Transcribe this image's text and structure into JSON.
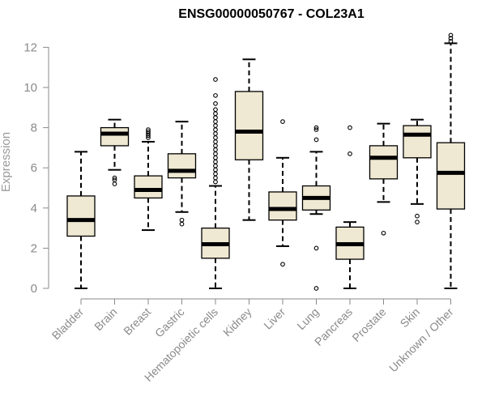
{
  "chart_data": {
    "type": "boxplot",
    "title": "ENSG00000050767 - COL23A1",
    "xlabel": "",
    "ylabel": "Expression",
    "ylim": [
      0,
      12.5
    ],
    "yticks": [
      0,
      2,
      4,
      6,
      8,
      10,
      12
    ],
    "colors": {
      "box_fill": "#efe8d2",
      "box_stroke": "#000000",
      "axis": "#8a8a8a"
    },
    "categories": [
      "Bladder",
      "Brain",
      "Breast",
      "Gastric",
      "Hematopoietic cells",
      "Kidney",
      "Liver",
      "Lung",
      "Pancreas",
      "Prostate",
      "Skin",
      "Unknown / Other"
    ],
    "boxes": [
      {
        "category": "Bladder",
        "min": 0.0,
        "q1": 2.6,
        "median": 3.4,
        "q3": 4.6,
        "max": 6.8,
        "outliers": []
      },
      {
        "category": "Brain",
        "min": 5.9,
        "q1": 7.1,
        "median": 7.7,
        "q3": 8.0,
        "max": 8.4,
        "outliers": [
          5.5,
          5.4,
          5.2
        ]
      },
      {
        "category": "Breast",
        "min": 2.9,
        "q1": 4.5,
        "median": 4.9,
        "q3": 5.6,
        "max": 7.3,
        "outliers": [
          7.5,
          7.6,
          7.7,
          7.8,
          7.9
        ]
      },
      {
        "category": "Gastric",
        "min": 3.8,
        "q1": 5.5,
        "median": 5.85,
        "q3": 6.7,
        "max": 8.3,
        "outliers": [
          3.4,
          3.2
        ]
      },
      {
        "category": "Hematopoietic cells",
        "min": 0.0,
        "q1": 1.5,
        "median": 2.2,
        "q3": 3.0,
        "max": 5.1,
        "outliers": [
          5.3,
          5.5,
          5.7,
          5.9,
          6.1,
          6.3,
          6.5,
          6.7,
          6.9,
          7.1,
          7.3,
          7.5,
          7.7,
          7.9,
          8.1,
          8.3,
          8.5,
          8.7,
          8.9,
          9.2,
          9.6,
          10.4
        ]
      },
      {
        "category": "Kidney",
        "min": 3.4,
        "q1": 6.4,
        "median": 7.8,
        "q3": 9.8,
        "max": 11.4,
        "outliers": []
      },
      {
        "category": "Liver",
        "min": 2.1,
        "q1": 3.4,
        "median": 3.95,
        "q3": 4.8,
        "max": 6.5,
        "outliers": [
          8.3,
          1.2
        ]
      },
      {
        "category": "Lung",
        "min": 3.7,
        "q1": 3.9,
        "median": 4.5,
        "q3": 5.1,
        "max": 6.8,
        "outliers": [
          7.4,
          7.9,
          8.0,
          2.0,
          0.0
        ]
      },
      {
        "category": "Pancreas",
        "min": 0.0,
        "q1": 1.45,
        "median": 2.2,
        "q3": 3.05,
        "max": 3.3,
        "outliers": [
          8.0,
          6.7
        ]
      },
      {
        "category": "Prostate",
        "min": 4.3,
        "q1": 5.45,
        "median": 6.5,
        "q3": 7.1,
        "max": 8.2,
        "outliers": [
          2.75
        ]
      },
      {
        "category": "Skin",
        "min": 4.2,
        "q1": 6.5,
        "median": 7.65,
        "q3": 8.1,
        "max": 8.4,
        "outliers": [
          3.6,
          3.3
        ]
      },
      {
        "category": "Unknown / Other",
        "min": 0.0,
        "q1": 3.95,
        "median": 5.75,
        "q3": 7.25,
        "max": 12.2,
        "outliers": [
          12.3,
          12.45,
          12.6
        ]
      }
    ]
  }
}
